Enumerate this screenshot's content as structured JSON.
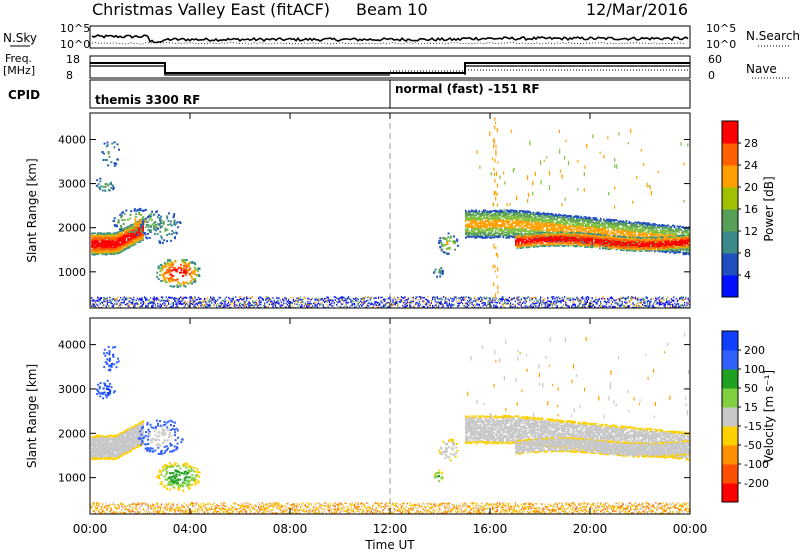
{
  "header": {
    "title": "Christmas Valley East (fitACF)",
    "beam": "Beam 10",
    "date": "12/Mar/2016"
  },
  "noise_panel": {
    "left_label": "N.Sky",
    "right_label": "N.Search",
    "left_top_tick": "10^5",
    "left_bottom_tick": "10^0",
    "right_top_tick": "10^5",
    "right_bottom_tick": "10^0"
  },
  "freq_panel": {
    "left_label_line1": "Freq.",
    "left_label_line2": "[MHz]",
    "left_top_tick": "18",
    "left_bottom_tick": "8",
    "right_label": "Nave",
    "right_top_tick": "60",
    "right_bottom_tick": "0"
  },
  "cpid_panel": {
    "label": "CPID",
    "segments": [
      "themis 3300 RF",
      "normal (fast) -151 RF"
    ]
  },
  "colors": {
    "power_scale": [
      "#0000ff",
      "#2050c0",
      "#3a8a8a",
      "#5aa05a",
      "#80c040",
      "#e0e000",
      "#ffa000",
      "#ff6000",
      "#ff0000"
    ],
    "velocity_scale": [
      "#1040ff",
      "#3060ff",
      "#20a020",
      "#80d040",
      "#c8c8c8",
      "#ffd000",
      "#ffa000",
      "#ff6000",
      "#ff0000"
    ]
  },
  "chart_data": [
    {
      "type": "heatmap",
      "name": "power",
      "ylabel": "Slant Range [km]",
      "yticks": [
        "1000",
        "2000",
        "3000",
        "4000"
      ],
      "colorbar_label": "Power [dB]",
      "colorbar_ticks": [
        "4",
        "8",
        "12",
        "16",
        "20",
        "24",
        "28"
      ],
      "xticks": [
        "00:00",
        "04:00",
        "08:00",
        "12:00",
        "16:00",
        "20:00",
        "00:00"
      ],
      "xlim_hours": [
        0,
        24
      ],
      "ylim_km": [
        180,
        4600
      ],
      "features": [
        {
          "start_h": 0.0,
          "end_h": 1.5,
          "range_km": 1700,
          "level": "high"
        },
        {
          "start_h": 1.5,
          "end_h": 3.5,
          "range_km": 1900,
          "level": "high"
        },
        {
          "start_h": 3.0,
          "end_h": 4.5,
          "range_km": 1000,
          "level": "high"
        },
        {
          "start_h": 14.0,
          "end_h": 15.0,
          "range_km": 1600,
          "level": "mid"
        },
        {
          "start_h": 15.0,
          "end_h": 24.0,
          "range_km": 2000,
          "level": "high"
        }
      ]
    },
    {
      "type": "heatmap",
      "name": "velocity",
      "ylabel": "Slant Range [km]",
      "yticks": [
        "1000",
        "2000",
        "3000",
        "4000"
      ],
      "colorbar_label": "Velocity [m s⁻¹]",
      "colorbar_ticks": [
        "200",
        "100",
        "50",
        "15",
        "-15",
        "-50",
        "-100",
        "-200"
      ],
      "xticks": [
        "00:00",
        "04:00",
        "08:00",
        "12:00",
        "16:00",
        "20:00",
        "00:00"
      ],
      "xlabel": "Time UT",
      "xlim_hours": [
        0,
        24
      ],
      "ylim_km": [
        180,
        4600
      ]
    }
  ]
}
